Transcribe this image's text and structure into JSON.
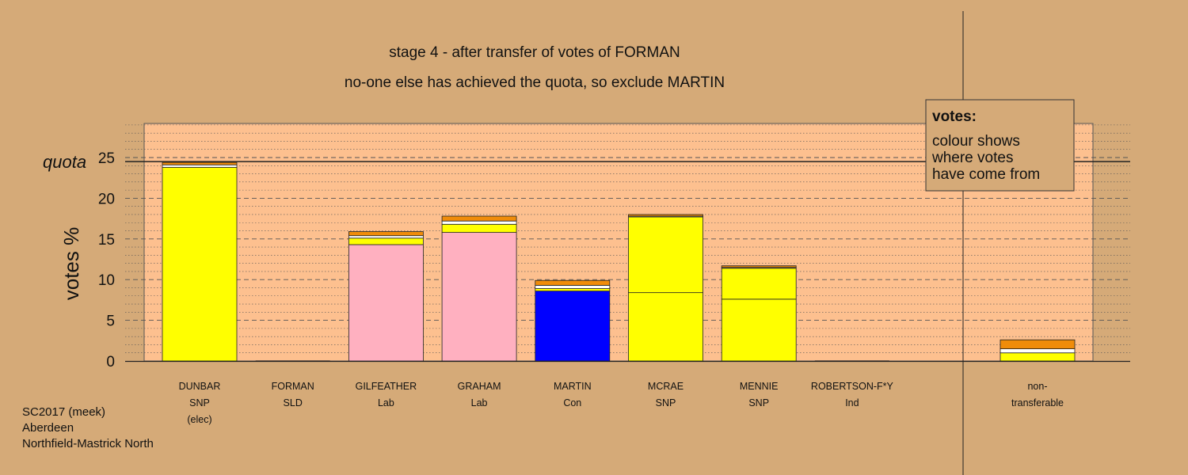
{
  "colors": {
    "background": "#d5aa78",
    "panel": "#fdc08f",
    "quota_line": "#222222",
    "grid": "#555555"
  },
  "chart_data": {
    "type": "bar",
    "stacked": true,
    "title": "stage 4 - after transfer of votes of FORMAN",
    "subtitle": "no-one else has achieved the quota, so exclude MARTIN",
    "ylabel": "votes %",
    "ylim": [
      0,
      29
    ],
    "yticks": [
      0,
      5,
      10,
      15,
      20,
      25
    ],
    "quota": 24.5,
    "quota_label": "quota",
    "grid": true,
    "legend": {
      "title": "votes:",
      "lines": [
        "colour shows",
        "where votes",
        "have come from"
      ],
      "position": "top-right"
    },
    "caption": [
      "SC2017 (meek)",
      "Aberdeen",
      "Northfield-Mastrick North"
    ],
    "categories": [
      {
        "name": "DUNBAR",
        "party": "SNP",
        "note": "(elec)",
        "segments": [
          {
            "value": 23.8,
            "color": "#ffff00"
          },
          {
            "value": 0.3,
            "color": "#ffffff"
          },
          {
            "value": 0.3,
            "color": "#f08c0a"
          }
        ]
      },
      {
        "name": "FORMAN",
        "party": "SLD",
        "note": "",
        "segments": []
      },
      {
        "name": "GILFEATHER",
        "party": "Lab",
        "note": "",
        "segments": [
          {
            "value": 14.3,
            "color": "#ffb0c0"
          },
          {
            "value": 0.8,
            "color": "#ffff00"
          },
          {
            "value": 0.3,
            "color": "#ffffff"
          },
          {
            "value": 0.5,
            "color": "#f08c0a"
          }
        ]
      },
      {
        "name": "GRAHAM",
        "party": "Lab",
        "note": "",
        "segments": [
          {
            "value": 15.8,
            "color": "#ffb0c0"
          },
          {
            "value": 1.0,
            "color": "#ffff00"
          },
          {
            "value": 0.4,
            "color": "#ffffff"
          },
          {
            "value": 0.6,
            "color": "#f08c0a"
          }
        ]
      },
      {
        "name": "MARTIN",
        "party": "Con",
        "note": "",
        "segments": [
          {
            "value": 8.6,
            "color": "#0000ff"
          },
          {
            "value": 0.3,
            "color": "#ffff00"
          },
          {
            "value": 0.4,
            "color": "#ffffff"
          },
          {
            "value": 0.6,
            "color": "#f08c0a"
          }
        ]
      },
      {
        "name": "MCRAE",
        "party": "SNP",
        "note": "",
        "segments": [
          {
            "value": 8.4,
            "color": "#ffff00"
          },
          {
            "value": 9.3,
            "color": "#ffff00"
          },
          {
            "value": 0.1,
            "color": "#ffffff"
          },
          {
            "value": 0.2,
            "color": "#f08c0a"
          }
        ]
      },
      {
        "name": "MENNIE",
        "party": "SNP",
        "note": "",
        "segments": [
          {
            "value": 7.6,
            "color": "#ffff00"
          },
          {
            "value": 3.8,
            "color": "#ffff00"
          },
          {
            "value": 0.1,
            "color": "#ffffff"
          },
          {
            "value": 0.2,
            "color": "#f08c0a"
          }
        ]
      },
      {
        "name": "ROBERTSON-F*Y",
        "party": "Ind",
        "note": "",
        "segments": []
      }
    ],
    "nontransferable": {
      "label": [
        "non-",
        "transferable"
      ],
      "segments": [
        {
          "value": 1.0,
          "color": "#ffff00"
        },
        {
          "value": 0.5,
          "color": "#ffffff"
        },
        {
          "value": 1.1,
          "color": "#f08c0a"
        }
      ]
    }
  }
}
